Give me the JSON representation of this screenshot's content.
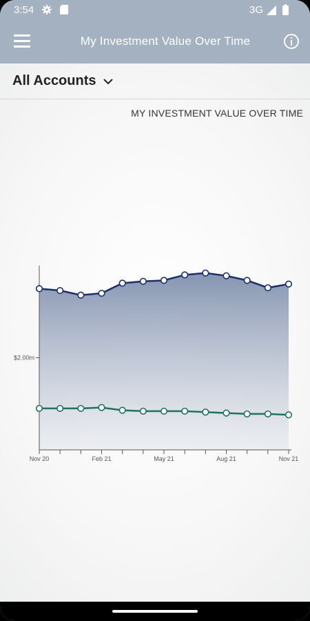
{
  "status_bar": {
    "time": "3:54",
    "network": "3G",
    "icons": [
      "gear-icon",
      "sd-card-icon",
      "signal-icon",
      "battery-icon"
    ]
  },
  "app_bar": {
    "title": "My Investment Value Over Time",
    "left_icon": "menu-icon",
    "right_icon": "info-icon",
    "background": "#a3b1c0"
  },
  "account_selector": {
    "label": "All Accounts",
    "icon": "chevron-down-icon"
  },
  "chart_data": {
    "type": "area",
    "title": "MY INVESTMENT VALUE OVER TIME",
    "x": [
      "Nov 20",
      "Dec 20",
      "Jan 21",
      "Feb 21",
      "Mar 21",
      "Apr 21",
      "May 21",
      "Jun 21",
      "Jul 21",
      "Aug 21",
      "Sep 21",
      "Oct 21",
      "Nov 21"
    ],
    "x_tick_labels": [
      "Nov 20",
      "Feb 21",
      "May 21",
      "Aug 21",
      "Nov 21"
    ],
    "y_tick_labels": [
      "$2.00m"
    ],
    "y_tick_values": [
      2.0
    ],
    "ylim": [
      1.0,
      3.0
    ],
    "xlabel": "",
    "ylabel": "",
    "grid": false,
    "series": [
      {
        "name": "",
        "color": "#1b2e6b",
        "fill": true,
        "values": [
          2.75,
          2.73,
          2.68,
          2.7,
          2.81,
          2.83,
          2.84,
          2.9,
          2.92,
          2.89,
          2.84,
          2.76,
          2.8
        ]
      },
      {
        "name": "",
        "color": "#1e7262",
        "fill": false,
        "values": [
          1.45,
          1.45,
          1.45,
          1.46,
          1.43,
          1.42,
          1.42,
          1.42,
          1.41,
          1.4,
          1.39,
          1.39,
          1.38
        ]
      }
    ]
  }
}
